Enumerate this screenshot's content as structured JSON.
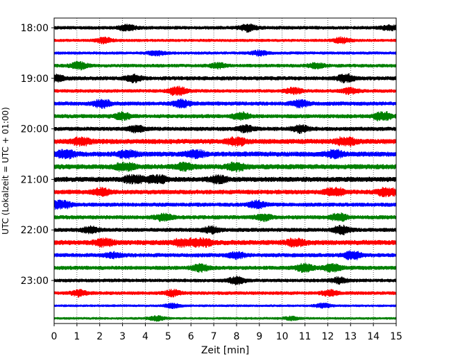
{
  "chart_data": {
    "type": "line",
    "title": "",
    "xlabel": "Zeit  [min]",
    "ylabel": "UTC (Lokalzeit = UTC + 01:00)",
    "xlim": [
      0,
      15
    ],
    "x_ticks": [
      "0",
      "1",
      "2",
      "3",
      "4",
      "5",
      "6",
      "7",
      "8",
      "9",
      "10",
      "11",
      "12",
      "13",
      "14",
      "15"
    ],
    "y_ticks": [
      "18:00",
      "19:00",
      "20:00",
      "21:00",
      "22:00",
      "23:00"
    ],
    "grid": "vertical dotted lines at each minute",
    "trace_interval_min": 15,
    "trace_colors": [
      "#000000",
      "#ff0000",
      "#0000ff",
      "#008000"
    ],
    "traces": [
      {
        "start": "18:00",
        "color": "#000000",
        "amplitude": 0.35,
        "bursts": [
          [
            3.2,
            0.5
          ],
          [
            8.5,
            0.6
          ],
          [
            14.7,
            0.4
          ]
        ]
      },
      {
        "start": "18:15",
        "color": "#ff0000",
        "amplitude": 0.3,
        "bursts": [
          [
            2.2,
            0.5
          ],
          [
            12.6,
            0.5
          ]
        ]
      },
      {
        "start": "18:30",
        "color": "#0000ff",
        "amplitude": 0.3,
        "bursts": [
          [
            4.5,
            0.4
          ],
          [
            9.0,
            0.4
          ]
        ]
      },
      {
        "start": "18:45",
        "color": "#008000",
        "amplitude": 0.35,
        "bursts": [
          [
            1.1,
            0.6
          ],
          [
            7.2,
            0.4
          ],
          [
            11.5,
            0.4
          ]
        ]
      },
      {
        "start": "19:00",
        "color": "#000000",
        "amplitude": 0.4,
        "bursts": [
          [
            0.1,
            0.5
          ],
          [
            3.5,
            0.6
          ],
          [
            12.8,
            0.7
          ]
        ]
      },
      {
        "start": "19:15",
        "color": "#ff0000",
        "amplitude": 0.35,
        "bursts": [
          [
            5.4,
            0.9
          ],
          [
            10.5,
            0.5
          ],
          [
            13.0,
            0.5
          ]
        ]
      },
      {
        "start": "19:30",
        "color": "#0000ff",
        "amplitude": 0.4,
        "bursts": [
          [
            2.1,
            0.8
          ],
          [
            5.6,
            0.6
          ],
          [
            10.8,
            0.6
          ]
        ]
      },
      {
        "start": "19:45",
        "color": "#008000",
        "amplitude": 0.4,
        "bursts": [
          [
            3.0,
            0.6
          ],
          [
            8.2,
            0.6
          ],
          [
            14.4,
            0.9
          ]
        ]
      },
      {
        "start": "20:00",
        "color": "#000000",
        "amplitude": 0.4,
        "bursts": [
          [
            3.6,
            0.5
          ],
          [
            8.4,
            0.5
          ],
          [
            10.8,
            0.6
          ]
        ]
      },
      {
        "start": "20:15",
        "color": "#ff0000",
        "amplitude": 0.5,
        "bursts": [
          [
            1.2,
            0.7
          ],
          [
            8.0,
            0.7
          ],
          [
            12.8,
            0.9
          ]
        ]
      },
      {
        "start": "20:30",
        "color": "#0000ff",
        "amplitude": 0.5,
        "bursts": [
          [
            0.5,
            0.9
          ],
          [
            3.2,
            0.8
          ],
          [
            6.2,
            0.7
          ],
          [
            12.3,
            0.6
          ]
        ]
      },
      {
        "start": "20:45",
        "color": "#008000",
        "amplitude": 0.5,
        "bursts": [
          [
            3.1,
            0.9
          ],
          [
            5.7,
            0.6
          ],
          [
            8.0,
            0.7
          ]
        ]
      },
      {
        "start": "21:00",
        "color": "#000000",
        "amplitude": 0.5,
        "bursts": [
          [
            3.5,
            1.0
          ],
          [
            4.5,
            1.0
          ],
          [
            7.2,
            0.6
          ]
        ]
      },
      {
        "start": "21:15",
        "color": "#ff0000",
        "amplitude": 0.45,
        "bursts": [
          [
            2.1,
            0.6
          ],
          [
            12.3,
            1.0
          ],
          [
            14.6,
            1.0
          ]
        ]
      },
      {
        "start": "21:30",
        "color": "#0000ff",
        "amplitude": 0.4,
        "bursts": [
          [
            0.3,
            1.0
          ],
          [
            8.9,
            0.6
          ]
        ]
      },
      {
        "start": "21:45",
        "color": "#008000",
        "amplitude": 0.4,
        "bursts": [
          [
            4.8,
            0.6
          ],
          [
            9.2,
            0.5
          ],
          [
            12.5,
            0.6
          ]
        ]
      },
      {
        "start": "22:00",
        "color": "#000000",
        "amplitude": 0.4,
        "bursts": [
          [
            1.6,
            0.5
          ],
          [
            6.9,
            0.5
          ],
          [
            12.6,
            0.7
          ]
        ]
      },
      {
        "start": "22:15",
        "color": "#ff0000",
        "amplitude": 0.5,
        "bursts": [
          [
            2.2,
            0.6
          ],
          [
            5.7,
            1.0
          ],
          [
            6.5,
            0.8
          ],
          [
            10.6,
            0.7
          ]
        ]
      },
      {
        "start": "22:30",
        "color": "#0000ff",
        "amplitude": 0.4,
        "bursts": [
          [
            2.6,
            0.4
          ],
          [
            8.0,
            0.5
          ],
          [
            13.1,
            0.9
          ]
        ]
      },
      {
        "start": "22:45",
        "color": "#008000",
        "amplitude": 0.4,
        "bursts": [
          [
            6.4,
            0.6
          ],
          [
            11.0,
            0.7
          ],
          [
            12.2,
            0.7
          ]
        ]
      },
      {
        "start": "23:00",
        "color": "#000000",
        "amplitude": 0.35,
        "bursts": [
          [
            8.0,
            0.6
          ],
          [
            12.5,
            0.5
          ]
        ]
      },
      {
        "start": "23:15",
        "color": "#ff0000",
        "amplitude": 0.35,
        "bursts": [
          [
            1.1,
            0.5
          ],
          [
            5.2,
            0.5
          ],
          [
            12.1,
            0.5
          ]
        ]
      },
      {
        "start": "23:30",
        "color": "#0000ff",
        "amplitude": 0.25,
        "bursts": [
          [
            5.2,
            0.4
          ],
          [
            11.8,
            0.4
          ]
        ]
      },
      {
        "start": "23:45",
        "color": "#008000",
        "amplitude": 0.25,
        "bursts": [
          [
            4.5,
            0.4
          ],
          [
            10.4,
            0.3
          ]
        ]
      }
    ]
  }
}
